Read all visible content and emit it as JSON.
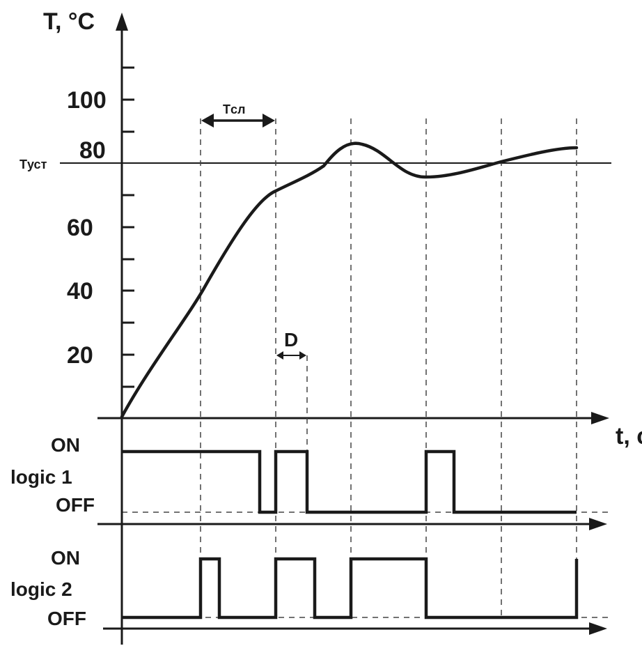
{
  "axes": {
    "y_label": "T, °C",
    "x_label": "t, с",
    "y_ticks": [
      "20",
      "40",
      "60",
      "80",
      "100"
    ],
    "setpoint_label": "Tуст"
  },
  "annotations": {
    "period_label": "Tсл",
    "delay_label": "D"
  },
  "logic1": {
    "on_label": "ON",
    "name_label": "logic 1",
    "off_label": "OFF"
  },
  "logic2": {
    "on_label": "ON",
    "name_label": "logic 2",
    "off_label": "OFF"
  },
  "colors": {
    "ink": "#1a1a1a",
    "background": "#ffffff"
  }
}
